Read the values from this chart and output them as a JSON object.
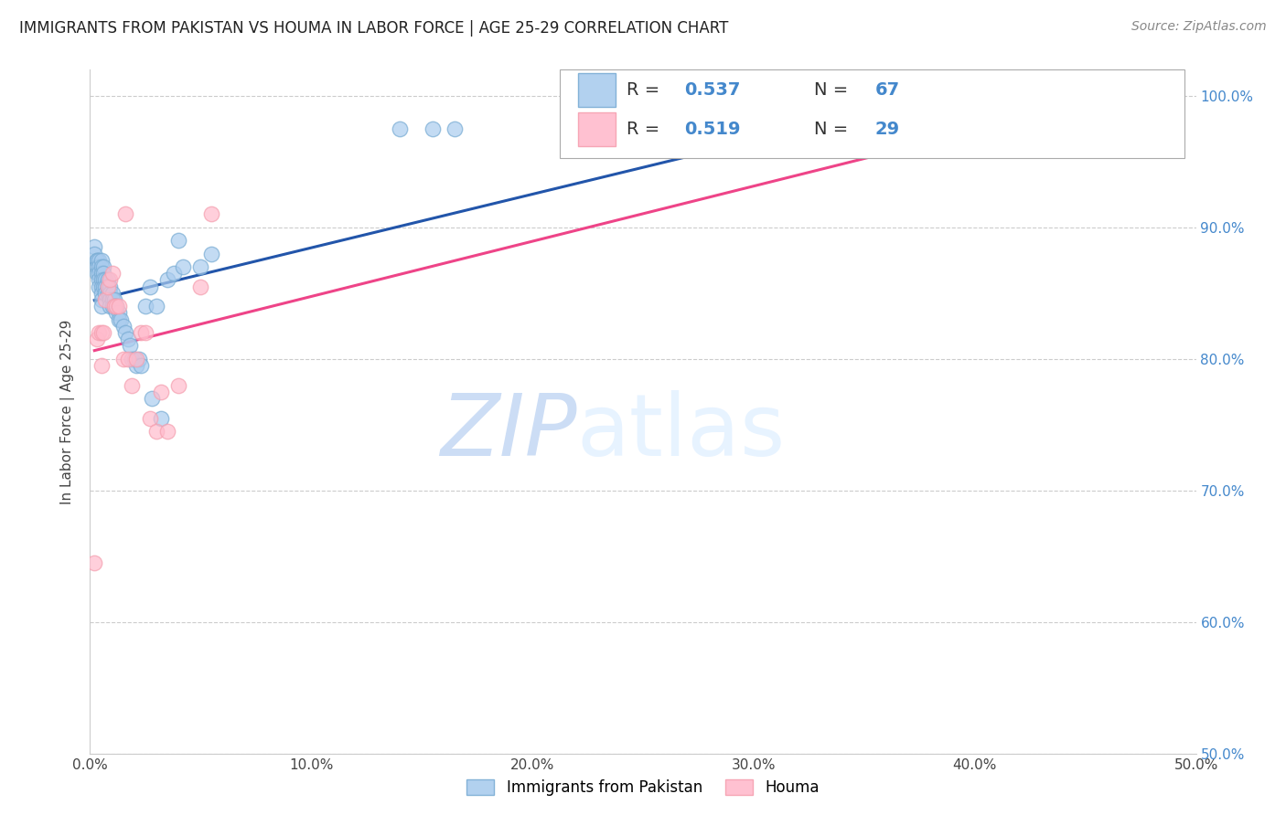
{
  "title": "IMMIGRANTS FROM PAKISTAN VS HOUMA IN LABOR FORCE | AGE 25-29 CORRELATION CHART",
  "source": "Source: ZipAtlas.com",
  "ylabel_label": "In Labor Force | Age 25-29",
  "x_tick_labels": [
    "0.0%",
    "10.0%",
    "20.0%",
    "30.0%",
    "40.0%",
    "50.0%"
  ],
  "y_tick_labels": [
    "50.0%",
    "60.0%",
    "70.0%",
    "80.0%",
    "90.0%",
    "100.0%"
  ],
  "xlim": [
    0.0,
    0.5
  ],
  "ylim": [
    0.5,
    1.02
  ],
  "legend_r1": "0.537",
  "legend_n1": "67",
  "legend_r2": "0.519",
  "legend_n2": "29",
  "legend_label1": "Immigrants from Pakistan",
  "legend_label2": "Houma",
  "blue_color": "#7aadd4",
  "pink_color": "#f5a0b0",
  "blue_fill_color": "#aaccee",
  "pink_fill_color": "#ffbbcc",
  "blue_line_color": "#2255aa",
  "pink_line_color": "#ee4488",
  "watermark_zip": "ZIP",
  "watermark_atlas": "atlas",
  "title_fontsize": 12,
  "source_fontsize": 10,
  "right_tick_color": "#4488cc",
  "pakistan_x": [
    0.002,
    0.002,
    0.003,
    0.003,
    0.003,
    0.003,
    0.004,
    0.004,
    0.004,
    0.004,
    0.004,
    0.005,
    0.005,
    0.005,
    0.005,
    0.005,
    0.005,
    0.005,
    0.005,
    0.006,
    0.006,
    0.006,
    0.006,
    0.007,
    0.007,
    0.007,
    0.008,
    0.008,
    0.008,
    0.009,
    0.009,
    0.009,
    0.009,
    0.01,
    0.01,
    0.01,
    0.011,
    0.011,
    0.012,
    0.012,
    0.013,
    0.013,
    0.014,
    0.015,
    0.016,
    0.017,
    0.018,
    0.019,
    0.02,
    0.021,
    0.022,
    0.023,
    0.025,
    0.027,
    0.028,
    0.03,
    0.032,
    0.035,
    0.038,
    0.04,
    0.042,
    0.05,
    0.055,
    0.14,
    0.155,
    0.165,
    0.44
  ],
  "pakistan_y": [
    0.885,
    0.88,
    0.875,
    0.875,
    0.87,
    0.865,
    0.875,
    0.87,
    0.865,
    0.86,
    0.855,
    0.875,
    0.87,
    0.865,
    0.86,
    0.855,
    0.85,
    0.845,
    0.84,
    0.87,
    0.865,
    0.86,
    0.855,
    0.86,
    0.855,
    0.85,
    0.86,
    0.855,
    0.85,
    0.855,
    0.85,
    0.845,
    0.84,
    0.85,
    0.845,
    0.84,
    0.845,
    0.84,
    0.84,
    0.835,
    0.835,
    0.83,
    0.83,
    0.825,
    0.82,
    0.815,
    0.81,
    0.8,
    0.8,
    0.795,
    0.8,
    0.795,
    0.84,
    0.855,
    0.77,
    0.84,
    0.755,
    0.86,
    0.865,
    0.89,
    0.87,
    0.87,
    0.88,
    0.975,
    0.975,
    0.975,
    0.975
  ],
  "houma_x": [
    0.002,
    0.003,
    0.004,
    0.005,
    0.005,
    0.006,
    0.007,
    0.008,
    0.009,
    0.01,
    0.011,
    0.012,
    0.013,
    0.015,
    0.016,
    0.017,
    0.019,
    0.021,
    0.023,
    0.025,
    0.027,
    0.03,
    0.032,
    0.035,
    0.04,
    0.05,
    0.055,
    0.37,
    0.43
  ],
  "houma_y": [
    0.645,
    0.815,
    0.82,
    0.82,
    0.795,
    0.82,
    0.845,
    0.855,
    0.86,
    0.865,
    0.84,
    0.84,
    0.84,
    0.8,
    0.91,
    0.8,
    0.78,
    0.8,
    0.82,
    0.82,
    0.755,
    0.745,
    0.775,
    0.745,
    0.78,
    0.855,
    0.91,
    0.975,
    0.975
  ]
}
